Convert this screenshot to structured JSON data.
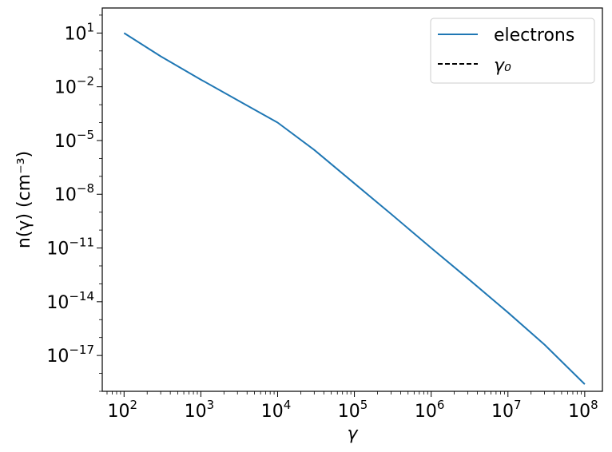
{
  "chart_data": {
    "type": "line",
    "title": "",
    "xlabel": "γ",
    "ylabel": "n(γ)   (cm⁻³)",
    "x_scale": "log",
    "y_scale": "log",
    "xlim": [
      52,
      170000000
    ],
    "ylim": [
      1e-19,
      250
    ],
    "x_ticks": [
      {
        "value": 100,
        "base": "10",
        "exp": "2"
      },
      {
        "value": 1000,
        "base": "10",
        "exp": "3"
      },
      {
        "value": 10000,
        "base": "10",
        "exp": "4"
      },
      {
        "value": 100000,
        "base": "10",
        "exp": "5"
      },
      {
        "value": 1000000,
        "base": "10",
        "exp": "6"
      },
      {
        "value": 10000000,
        "base": "10",
        "exp": "7"
      },
      {
        "value": 100000000,
        "base": "10",
        "exp": "8"
      }
    ],
    "y_ticks": [
      {
        "value": 10,
        "base": "10",
        "exp": "1"
      },
      {
        "value": 0.01,
        "base": "10",
        "exp": "−2"
      },
      {
        "value": 1e-05,
        "base": "10",
        "exp": "−5"
      },
      {
        "value": 1e-08,
        "base": "10",
        "exp": "−8"
      },
      {
        "value": 1e-11,
        "base": "10",
        "exp": "−11"
      },
      {
        "value": 1e-14,
        "base": "10",
        "exp": "−14"
      },
      {
        "value": 1e-17,
        "base": "10",
        "exp": "−17"
      }
    ],
    "grid": false,
    "legend_position": "top-right",
    "series": [
      {
        "name": "electrons",
        "color": "#1f77b4",
        "style": "solid",
        "x": [
          100,
          300,
          1000,
          3000,
          10000,
          30000,
          100000,
          300000,
          1000000,
          3000000,
          10000000,
          30000000,
          100000000
        ],
        "y": [
          10,
          0.5,
          0.025,
          0.0018,
          0.0001,
          3e-06,
          4e-08,
          8e-10,
          1e-11,
          2e-13,
          2.5e-15,
          4e-17,
          2.5e-19
        ]
      },
      {
        "name": "γ₀",
        "color": "#000000",
        "style": "dashed",
        "x": [],
        "y": []
      }
    ]
  }
}
